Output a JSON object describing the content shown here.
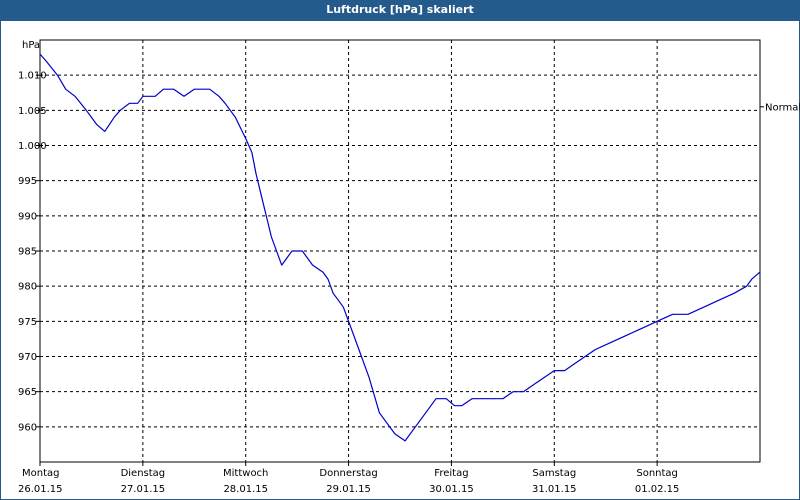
{
  "title": "Luftdruck [hPa] skaliert",
  "chart_data": {
    "type": "line",
    "title": "Luftdruck [hPa] skaliert",
    "ylabel": "hPa",
    "ylim": [
      955,
      1015
    ],
    "yticks": [
      {
        "value": 1010,
        "label": "1.010"
      },
      {
        "value": 1005,
        "label": "1.005"
      },
      {
        "value": 1000,
        "label": "1.000"
      },
      {
        "value": 995,
        "label": "995"
      },
      {
        "value": 990,
        "label": "990"
      },
      {
        "value": 985,
        "label": "985"
      },
      {
        "value": 980,
        "label": "980"
      },
      {
        "value": 975,
        "label": "975"
      },
      {
        "value": 970,
        "label": "970"
      },
      {
        "value": 965,
        "label": "965"
      },
      {
        "value": 960,
        "label": "960"
      }
    ],
    "xlim": [
      0,
      7
    ],
    "xticks": [
      {
        "value": 0,
        "day": "Montag",
        "date": "26.01.15"
      },
      {
        "value": 1,
        "day": "Dienstag",
        "date": "27.01.15"
      },
      {
        "value": 2,
        "day": "Mittwoch",
        "date": "28.01.15"
      },
      {
        "value": 3,
        "day": "Donnerstag",
        "date": "29.01.15"
      },
      {
        "value": 4,
        "day": "Freitag",
        "date": "30.01.15"
      },
      {
        "value": 5,
        "day": "Samstag",
        "date": "31.01.15"
      },
      {
        "value": 6,
        "day": "Sonntag",
        "date": "01.02.15"
      }
    ],
    "reference": {
      "value": 1005.5,
      "label": "Normal"
    },
    "grid": true,
    "series": [
      {
        "name": "Luftdruck",
        "color": "#0000cc",
        "x": [
          0.0,
          0.06,
          0.17,
          0.25,
          0.34,
          0.45,
          0.55,
          0.63,
          0.72,
          0.78,
          0.87,
          0.95,
          1.0,
          1.05,
          1.12,
          1.2,
          1.3,
          1.4,
          1.5,
          1.6,
          1.65,
          1.74,
          1.8,
          1.9,
          2.0,
          2.06,
          2.1,
          2.15,
          2.25,
          2.35,
          2.45,
          2.55,
          2.65,
          2.75,
          2.8,
          2.85,
          2.9,
          2.95,
          3.0,
          3.1,
          3.2,
          3.3,
          3.45,
          3.55,
          3.65,
          3.75,
          3.85,
          3.95,
          4.03,
          4.1,
          4.2,
          4.3,
          4.4,
          4.5,
          4.6,
          4.7,
          4.8,
          4.9,
          5.0,
          5.1,
          5.2,
          5.3,
          5.4,
          5.55,
          5.7,
          5.85,
          6.0,
          6.15,
          6.3,
          6.45,
          6.6,
          6.75,
          6.87,
          6.92,
          7.0
        ],
        "values": [
          1013,
          1012,
          1010,
          1008,
          1007,
          1005,
          1003,
          1002,
          1004,
          1005,
          1006,
          1006,
          1007,
          1007,
          1007,
          1008,
          1008,
          1007,
          1008,
          1008,
          1008,
          1007,
          1006,
          1004,
          1001,
          999,
          996,
          993,
          987,
          983,
          985,
          985,
          983,
          982,
          981,
          979,
          978,
          977,
          975,
          971,
          967,
          962,
          959,
          958,
          960,
          962,
          964,
          964,
          963,
          963,
          964,
          964,
          964,
          964,
          965,
          965,
          966,
          967,
          968,
          968,
          969,
          970,
          971,
          972,
          973,
          974,
          975,
          976,
          976,
          977,
          978,
          979,
          980,
          981,
          982
        ]
      }
    ]
  }
}
